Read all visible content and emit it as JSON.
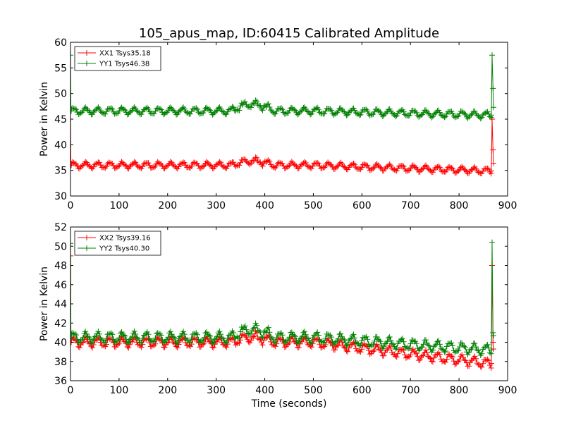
{
  "chart_data": [
    {
      "type": "line",
      "title": "105_apus_map, ID:60415 Calibrated Amplitude",
      "xlabel": "",
      "ylabel": "Power in Kelvin",
      "xlim": [
        0,
        900
      ],
      "ylim": [
        30,
        60
      ],
      "xticks": [
        "0",
        "100",
        "200",
        "300",
        "400",
        "500",
        "600",
        "700",
        "800",
        "900"
      ],
      "yticks": [
        "30",
        "35",
        "40",
        "45",
        "50",
        "55",
        "60"
      ],
      "legend_position": "top-left",
      "grid": false,
      "series": [
        {
          "name": "XX1 Tsys35.18",
          "color": "#ff0000",
          "marker": "plus",
          "base": 36.0,
          "osc_amp": 0.55,
          "osc_period": 25,
          "bump": {
            "start": 330,
            "end": 420,
            "amp": 1.0
          },
          "end_trend": 34.9,
          "spike": [
            {
              "x": 0,
              "y": 45
            },
            {
              "x": 868,
              "y": 45
            },
            {
              "x": 870,
              "y": 39
            }
          ]
        },
        {
          "name": "YY1 Tsys46.38",
          "color": "#008000",
          "marker": "plus",
          "base": 46.6,
          "osc_amp": 0.6,
          "osc_period": 25,
          "bump": {
            "start": 330,
            "end": 420,
            "amp": 1.6
          },
          "end_trend": 45.8,
          "spike": [
            {
              "x": 0,
              "y": 57.5
            },
            {
              "x": 868,
              "y": 57.5
            },
            {
              "x": 870,
              "y": 51
            }
          ]
        }
      ]
    },
    {
      "type": "line",
      "title": "",
      "xlabel": "Time (seconds)",
      "ylabel": "Power in Kelvin",
      "xlim": [
        0,
        900
      ],
      "ylim": [
        36,
        52
      ],
      "xticks": [
        "0",
        "100",
        "200",
        "300",
        "400",
        "500",
        "600",
        "700",
        "800",
        "900"
      ],
      "yticks": [
        "36",
        "38",
        "40",
        "42",
        "44",
        "46",
        "48",
        "50",
        "52"
      ],
      "legend_position": "top-left",
      "grid": false,
      "series": [
        {
          "name": "XX2 Tsys39.16",
          "color": "#ff0000",
          "marker": "plus",
          "base": 40.0,
          "osc_amp": 0.45,
          "osc_period": 25,
          "bump": {
            "start": 330,
            "end": 420,
            "amp": 0.6
          },
          "end_trend": 37.8,
          "spike": [
            {
              "x": 0,
              "y": 49
            },
            {
              "x": 868,
              "y": 48
            },
            {
              "x": 870,
              "y": 40
            }
          ]
        },
        {
          "name": "YY2 Tsys40.30",
          "color": "#008000",
          "marker": "plus",
          "base": 40.5,
          "osc_amp": 0.5,
          "osc_period": 25,
          "bump": {
            "start": 330,
            "end": 420,
            "amp": 1.0
          },
          "end_trend": 39.2,
          "spike": [
            {
              "x": 0,
              "y": 50.3
            },
            {
              "x": 868,
              "y": 50.4
            },
            {
              "x": 870,
              "y": 41
            }
          ]
        }
      ]
    }
  ]
}
